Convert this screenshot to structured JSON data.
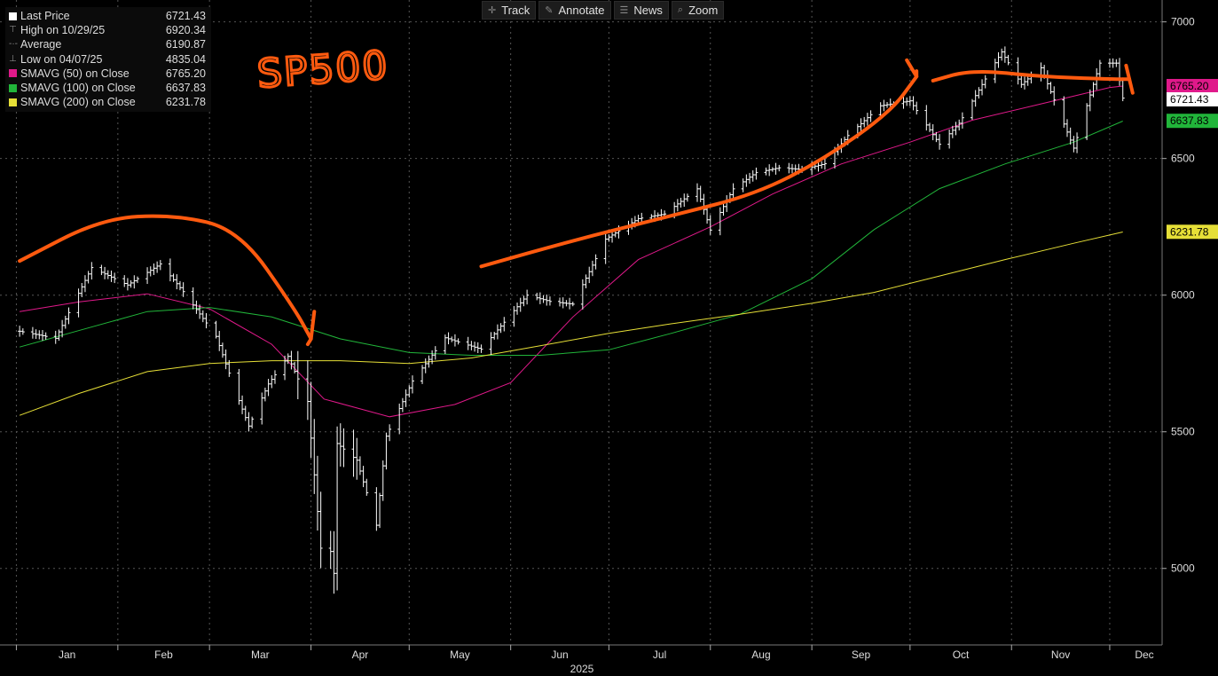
{
  "toolbar": {
    "track": "Track",
    "annotate": "Annotate",
    "news": "News",
    "zoom": "Zoom"
  },
  "legend": {
    "last_price_label": "Last Price",
    "last_price_value": "6721.43",
    "high_label": "High on 10/29/25",
    "high_value": "6920.34",
    "average_label": "Average",
    "average_value": "6190.87",
    "low_label": "Low on 04/07/25",
    "low_value": "4835.04",
    "sma50_label": "SMAVG (50)  on Close",
    "sma50_value": "6765.20",
    "sma100_label": "SMAVG (100)  on Close",
    "sma100_value": "6637.83",
    "sma200_label": "SMAVG (200)  on Close",
    "sma200_value": "6231.78"
  },
  "annotation_text": "SP500",
  "chart_data": {
    "type": "bar",
    "year_label": "2025",
    "months": [
      "Jan",
      "Feb",
      "Mar",
      "Apr",
      "May",
      "Jun",
      "Jul",
      "Aug",
      "Sep",
      "Oct",
      "Nov",
      "Dec"
    ],
    "y_ticks": [
      5000,
      5500,
      6000,
      6500,
      7000
    ],
    "ylim": [
      4720,
      7080
    ],
    "colors": {
      "price": "#ffffff",
      "sma50": "#e0198a",
      "sma100": "#21b53a",
      "sma200": "#e6df37",
      "annotation": "#ff5a0f",
      "grid": "#555555"
    },
    "series": [
      {
        "name": "Last Price",
        "x": [
          "2025-01-02",
          "2025-01-13",
          "2025-01-24",
          "2025-02-04",
          "2025-02-14",
          "2025-02-21",
          "2025-03-03",
          "2025-03-10",
          "2025-03-13",
          "2025-03-19",
          "2025-03-25",
          "2025-03-31",
          "2025-04-04",
          "2025-04-07",
          "2025-04-08",
          "2025-04-09",
          "2025-04-15",
          "2025-04-21",
          "2025-04-24",
          "2025-05-02",
          "2025-05-12",
          "2025-05-23",
          "2025-06-06",
          "2025-06-13",
          "2025-06-20",
          "2025-06-30",
          "2025-07-10",
          "2025-07-18",
          "2025-07-28",
          "2025-08-01",
          "2025-08-08",
          "2025-08-15",
          "2025-08-22",
          "2025-08-29",
          "2025-09-05",
          "2025-09-12",
          "2025-09-22",
          "2025-10-01",
          "2025-10-10",
          "2025-10-16",
          "2025-10-24",
          "2025-10-29",
          "2025-11-04",
          "2025-11-10",
          "2025-11-20",
          "2025-11-28",
          "2025-12-03",
          "2025-12-05"
        ],
        "values": [
          5868,
          5842,
          6101,
          6037,
          6114,
          6013,
          5849,
          5614,
          5521,
          5675,
          5776,
          5611,
          5074,
          5062,
          4982,
          5457,
          5396,
          5158,
          5484,
          5686,
          5844,
          5802,
          6000,
          5977,
          5967,
          6205,
          6280,
          6297,
          6389,
          6238,
          6389,
          6449,
          6466,
          6460,
          6481,
          6584,
          6693,
          6711,
          6552,
          6629,
          6791,
          6890,
          6771,
          6832,
          6538,
          6849,
          6849,
          6721
        ]
      },
      {
        "name": "SMAVG (50)  on Close",
        "x": [
          "2025-01-02",
          "2025-01-20",
          "2025-02-10",
          "2025-03-01",
          "2025-03-20",
          "2025-04-05",
          "2025-04-25",
          "2025-05-15",
          "2025-06-01",
          "2025-06-20",
          "2025-07-10",
          "2025-08-01",
          "2025-08-20",
          "2025-09-10",
          "2025-10-01",
          "2025-10-20",
          "2025-11-10",
          "2025-12-01",
          "2025-12-05"
        ],
        "values": [
          5940,
          5975,
          6005,
          5950,
          5820,
          5620,
          5555,
          5600,
          5680,
          5920,
          6130,
          6250,
          6370,
          6480,
          6560,
          6640,
          6700,
          6760,
          6765
        ]
      },
      {
        "name": "SMAVG (100)  on Close",
        "x": [
          "2025-01-02",
          "2025-01-20",
          "2025-02-10",
          "2025-03-01",
          "2025-03-20",
          "2025-04-10",
          "2025-05-01",
          "2025-05-20",
          "2025-06-10",
          "2025-07-01",
          "2025-07-20",
          "2025-08-10",
          "2025-09-01",
          "2025-09-20",
          "2025-10-10",
          "2025-10-30",
          "2025-11-20",
          "2025-12-05"
        ],
        "values": [
          5810,
          5870,
          5940,
          5955,
          5920,
          5840,
          5790,
          5780,
          5780,
          5800,
          5860,
          5930,
          6060,
          6240,
          6390,
          6480,
          6560,
          6637
        ]
      },
      {
        "name": "SMAVG (200)  on Close",
        "x": [
          "2025-01-02",
          "2025-01-20",
          "2025-02-10",
          "2025-03-01",
          "2025-03-20",
          "2025-04-10",
          "2025-05-01",
          "2025-05-20",
          "2025-06-10",
          "2025-07-01",
          "2025-07-20",
          "2025-08-10",
          "2025-09-01",
          "2025-09-20",
          "2025-10-10",
          "2025-10-30",
          "2025-11-20",
          "2025-12-05"
        ],
        "values": [
          5560,
          5640,
          5720,
          5750,
          5760,
          5760,
          5750,
          5770,
          5815,
          5860,
          5895,
          5930,
          5970,
          6010,
          6070,
          6130,
          6190,
          6231
        ]
      }
    ],
    "last_value_labels": [
      "6765.20",
      "6721.43",
      "6637.83",
      "6231.78"
    ],
    "annotation_paths": [
      {
        "name": "annotation-arc-down",
        "x": [
          "2025-01-02",
          "2025-01-27",
          "2025-02-18",
          "2025-03-10",
          "2025-03-27",
          "2025-04-01"
        ],
        "values": [
          6125,
          6280,
          6295,
          6240,
          5950,
          5840
        ],
        "arrow_end": [
          [
            "2025-03-31",
            "5820"
          ],
          [
            "2025-04-02",
            "5940"
          ]
        ]
      },
      {
        "name": "annotation-trend-up",
        "x": [
          "2025-05-23",
          "2025-06-20",
          "2025-07-20",
          "2025-08-15",
          "2025-09-05",
          "2025-09-25",
          "2025-10-03"
        ],
        "values": [
          6105,
          6200,
          6290,
          6370,
          6500,
          6670,
          6800
        ],
        "arrow_end": [
          [
            "2025-09-30",
            "6860"
          ],
          [
            "2025-10-03",
            "6820"
          ]
        ]
      },
      {
        "name": "annotation-flat",
        "x": [
          "2025-10-08",
          "2025-10-20",
          "2025-11-10",
          "2025-12-01",
          "2025-12-07"
        ],
        "values": [
          6785,
          6825,
          6800,
          6790,
          6790
        ],
        "arrow_end": [
          [
            "2025-12-06",
            "6840"
          ],
          [
            "2025-12-08",
            "6740"
          ]
        ]
      }
    ]
  }
}
